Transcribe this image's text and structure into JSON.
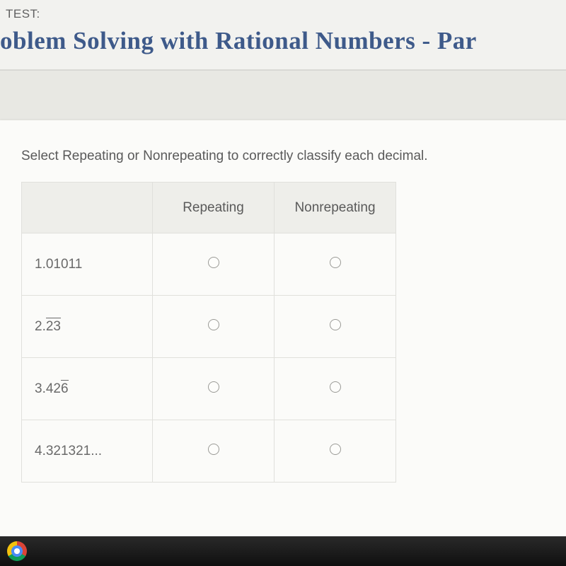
{
  "header": {
    "test_label": "TEST:",
    "title": "oblem Solving with Rational Numbers - Par"
  },
  "question": {
    "prompt": "Select Repeating or Nonrepeating to correctly classify each decimal.",
    "columns": [
      "Repeating",
      "Nonrepeating"
    ],
    "rows": [
      {
        "label_plain": "1.01011",
        "has_overline": false
      },
      {
        "label_pre": "2.",
        "label_over": "23",
        "has_overline": true,
        "over_class": "overline-23"
      },
      {
        "label_pre": "3.42",
        "label_over": "6",
        "has_overline": true,
        "over_class": "overline-6"
      },
      {
        "label_plain": "4.321321...",
        "has_overline": false
      }
    ]
  },
  "styling": {
    "title_color": "#3e5a8a",
    "header_bg": "#f2f2ef",
    "card_bg": "#fbfbf9",
    "table_header_bg": "#eeeeea",
    "border_color": "#e0e0dc",
    "text_color": "#5a5a5a",
    "radio_border": "#9a9a96",
    "title_fontsize": 35,
    "prompt_fontsize": 19,
    "cell_fontsize": 19
  }
}
